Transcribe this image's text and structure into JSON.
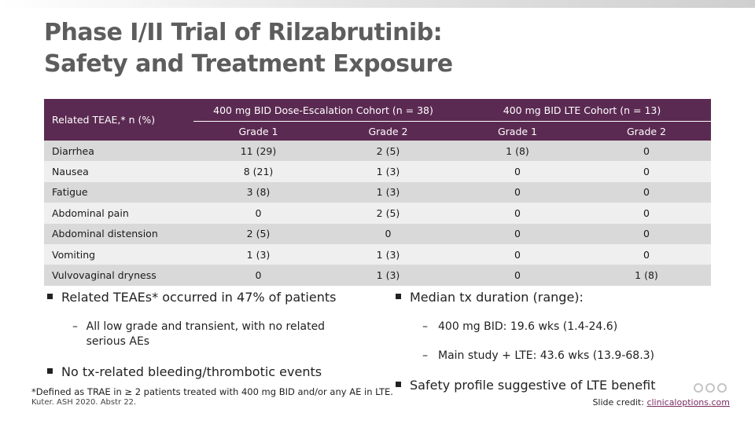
{
  "title": {
    "line1": "Phase I/II Trial of Rilzabrutinib:",
    "line2": "Safety and Treatment Exposure"
  },
  "table": {
    "row_header": "Related TEAE,* n (%)",
    "groups": [
      "400 mg BID Dose-Escalation Cohort (n = 38)",
      "400 mg BID LTE Cohort (n = 13)"
    ],
    "subheaders": [
      "Grade 1",
      "Grade 2",
      "Grade 1",
      "Grade 2"
    ],
    "rows": [
      {
        "label": "Diarrhea",
        "cells": [
          "11 (29)",
          "2 (5)",
          "1 (8)",
          "0"
        ]
      },
      {
        "label": "Nausea",
        "cells": [
          "8 (21)",
          "1 (3)",
          "0",
          "0"
        ]
      },
      {
        "label": "Fatigue",
        "cells": [
          "3 (8)",
          "1 (3)",
          "0",
          "0"
        ]
      },
      {
        "label": "Abdominal pain",
        "cells": [
          "0",
          "2 (5)",
          "0",
          "0"
        ]
      },
      {
        "label": "Abdominal distension",
        "cells": [
          "2 (5)",
          "0",
          "0",
          "0"
        ]
      },
      {
        "label": "Vomiting",
        "cells": [
          "1 (3)",
          "1 (3)",
          "0",
          "0"
        ]
      },
      {
        "label": "Vulvovaginal dryness",
        "cells": [
          "0",
          "1 (3)",
          "0",
          "1 (8)"
        ]
      }
    ]
  },
  "left_bullets": {
    "b1": "Related TEAEs* occurred in 47% of patients",
    "b1_sub": "All low grade and transient, with no related serious AEs",
    "b2": "No tx-related bleeding/thrombotic events"
  },
  "right_bullets": {
    "b1": "Median tx duration (range):",
    "b1_sub1": "400 mg BID: 19.6 wks (1.4-24.6)",
    "b1_sub2": "Main study + LTE: 43.6 wks (13.9-68.3)",
    "b2": "Safety profile suggestive of LTE benefit"
  },
  "footnote": "*Defined as TRAE in ≥ 2 patients treated with 400 mg BID and/or any AE in LTE.",
  "citation": "Kuter. ASH 2020. Abstr 22.",
  "credit": {
    "label": "Slide credit: ",
    "link": "clinicaloptions.com"
  },
  "logo_letters": "CCO",
  "colors": {
    "header": "#5b2a52",
    "row_odd": "#d9d9d9",
    "row_even": "#efefef",
    "title": "#5d5d5d"
  }
}
